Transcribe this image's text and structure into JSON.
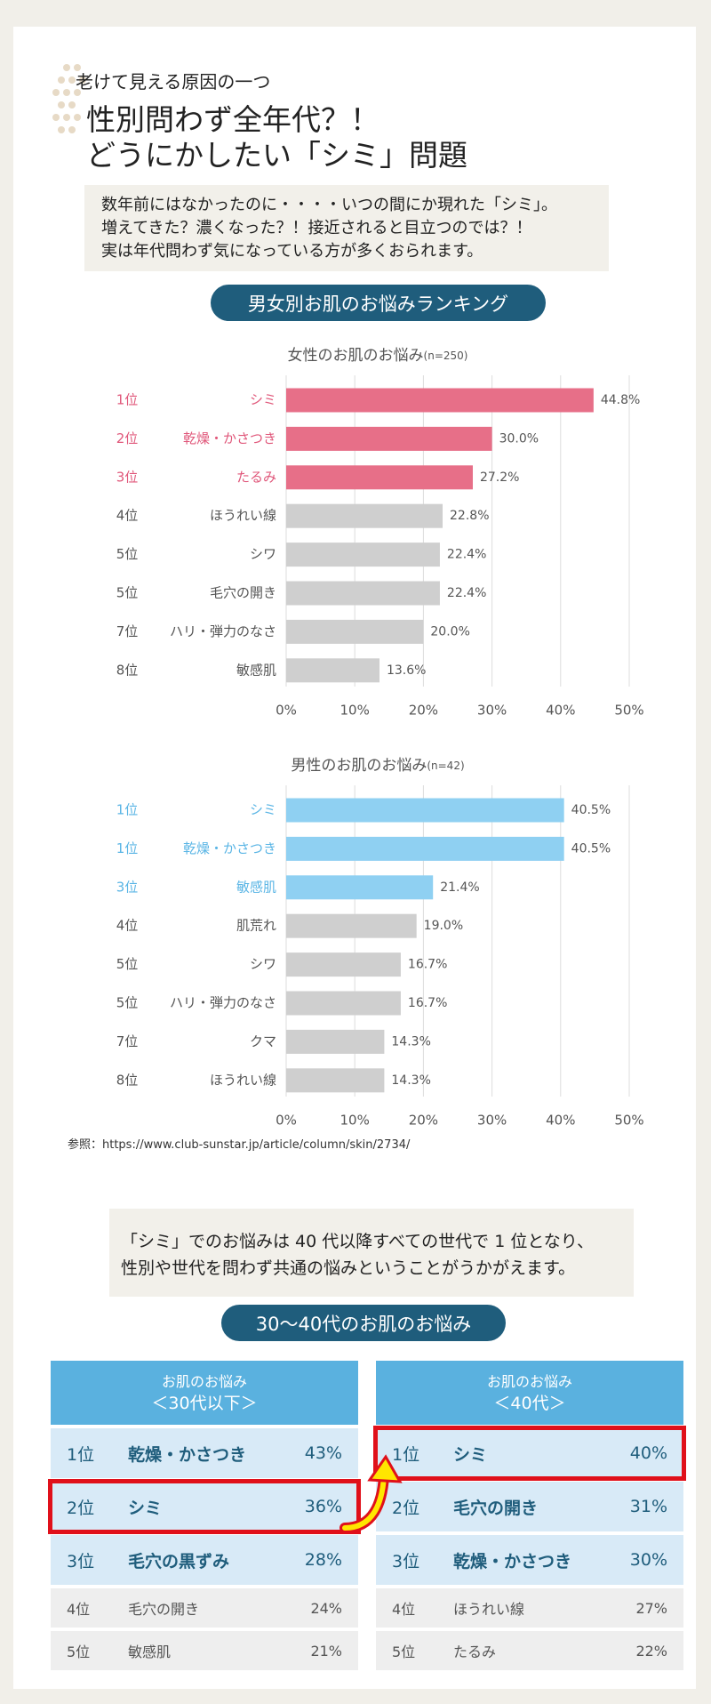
{
  "header": {
    "kicker": "老けて見える原因の一つ",
    "title_lines": [
      "性別問わず全年代？！",
      "どうにかしたい「シミ」問題"
    ]
  },
  "intro": [
    "数年前にはなかったのに・・・・いつの間にか現れた「シミ」。",
    "増えてきた？濃くなった？！接近されると目立つのでは？！",
    "実は年代問わず気になっている方が多くおられます。"
  ],
  "ranking_heading": "男女別お肌のお悩みランキング",
  "chart_data": [
    {
      "type": "bar",
      "orientation": "horizontal",
      "title": "女性のお肌のお悩み",
      "note": "(n=250)",
      "ranks": [
        "1位",
        "2位",
        "3位",
        "4位",
        "5位",
        "5位",
        "7位",
        "8位"
      ],
      "categories": [
        "シミ",
        "乾燥・かさつき",
        "たるみ",
        "ほうれい線",
        "シワ",
        "毛穴の開き",
        "ハリ・弾力のなさ",
        "敏感肌"
      ],
      "values": [
        44.8,
        30.0,
        27.2,
        22.8,
        22.4,
        22.4,
        20.0,
        13.6
      ],
      "value_labels": [
        "44.8%",
        "30.0%",
        "27.2%",
        "22.8%",
        "22.4%",
        "22.4%",
        "20.0%",
        "13.6%"
      ],
      "colors": [
        "#e76f88",
        "#e76f88",
        "#e76f88",
        "#cfcfcf",
        "#cfcfcf",
        "#cfcfcf",
        "#cfcfcf",
        "#cfcfcf"
      ],
      "label_colors": [
        "#e0577a",
        "#e0577a",
        "#e0577a",
        "#555555",
        "#555555",
        "#555555",
        "#555555",
        "#555555"
      ],
      "xlim": [
        0,
        50
      ],
      "xticks": [
        {
          "value": 0,
          "label": "0%"
        },
        {
          "value": 10,
          "label": "10%"
        },
        {
          "value": 20,
          "label": "20%"
        },
        {
          "value": 30,
          "label": "30%"
        },
        {
          "value": 40,
          "label": "40%"
        },
        {
          "value": 50,
          "label": "50%"
        }
      ],
      "grid": true
    },
    {
      "type": "bar",
      "orientation": "horizontal",
      "title": "男性のお肌のお悩み",
      "note": "(n=42)",
      "ranks": [
        "1位",
        "1位",
        "3位",
        "4位",
        "5位",
        "5位",
        "7位",
        "8位"
      ],
      "categories": [
        "シミ",
        "乾燥・かさつき",
        "敏感肌",
        "肌荒れ",
        "シワ",
        "ハリ・弾力のなさ",
        "クマ",
        "ほうれい線"
      ],
      "values": [
        40.5,
        40.5,
        21.4,
        19.0,
        16.7,
        16.7,
        14.3,
        14.3
      ],
      "value_labels": [
        "40.5%",
        "40.5%",
        "21.4%",
        "19.0%",
        "16.7%",
        "16.7%",
        "14.3%",
        "14.3%"
      ],
      "colors": [
        "#8fd0f2",
        "#8fd0f2",
        "#8fd0f2",
        "#cfcfcf",
        "#cfcfcf",
        "#cfcfcf",
        "#cfcfcf",
        "#cfcfcf"
      ],
      "label_colors": [
        "#5ab5e5",
        "#5ab5e5",
        "#5ab5e5",
        "#555555",
        "#555555",
        "#555555",
        "#555555",
        "#555555"
      ],
      "xlim": [
        0,
        50
      ],
      "xticks": [
        {
          "value": 0,
          "label": "0%"
        },
        {
          "value": 10,
          "label": "10%"
        },
        {
          "value": 20,
          "label": "20%"
        },
        {
          "value": 30,
          "label": "30%"
        },
        {
          "value": 40,
          "label": "40%"
        },
        {
          "value": 50,
          "label": "50%"
        }
      ],
      "grid": true
    }
  ],
  "reference": "参照：https://www.club-sunstar.jp/article/column/skin/2734/",
  "summary": [
    "「シミ」でのお悩みは 40 代以降すべての世代で 1 位となり、",
    "性別や世代を問わず共通の悩みということがうかがえます。"
  ],
  "age_heading": "30〜40代のお肌のお悩み",
  "tables": [
    {
      "header": [
        "お肌のお悩み",
        "＜30代以下＞"
      ],
      "highlight_row": 1,
      "rows": [
        [
          "1位",
          "乾燥・かさつき",
          "43%"
        ],
        [
          "2位",
          "シミ",
          "36%"
        ],
        [
          "3位",
          "毛穴の黒ずみ",
          "28%"
        ],
        [
          "4位",
          "毛穴の開き",
          "24%"
        ],
        [
          "5位",
          "敏感肌",
          "21%"
        ]
      ]
    },
    {
      "header": [
        "お肌のお悩み",
        "＜40代＞"
      ],
      "highlight_row": 0,
      "rows": [
        [
          "1位",
          "シミ",
          "40%"
        ],
        [
          "2位",
          "毛穴の開き",
          "31%"
        ],
        [
          "3位",
          "乾燥・かさつき",
          "30%"
        ],
        [
          "4位",
          "ほうれい線",
          "27%"
        ],
        [
          "5位",
          "たるみ",
          "22%"
        ]
      ]
    }
  ]
}
